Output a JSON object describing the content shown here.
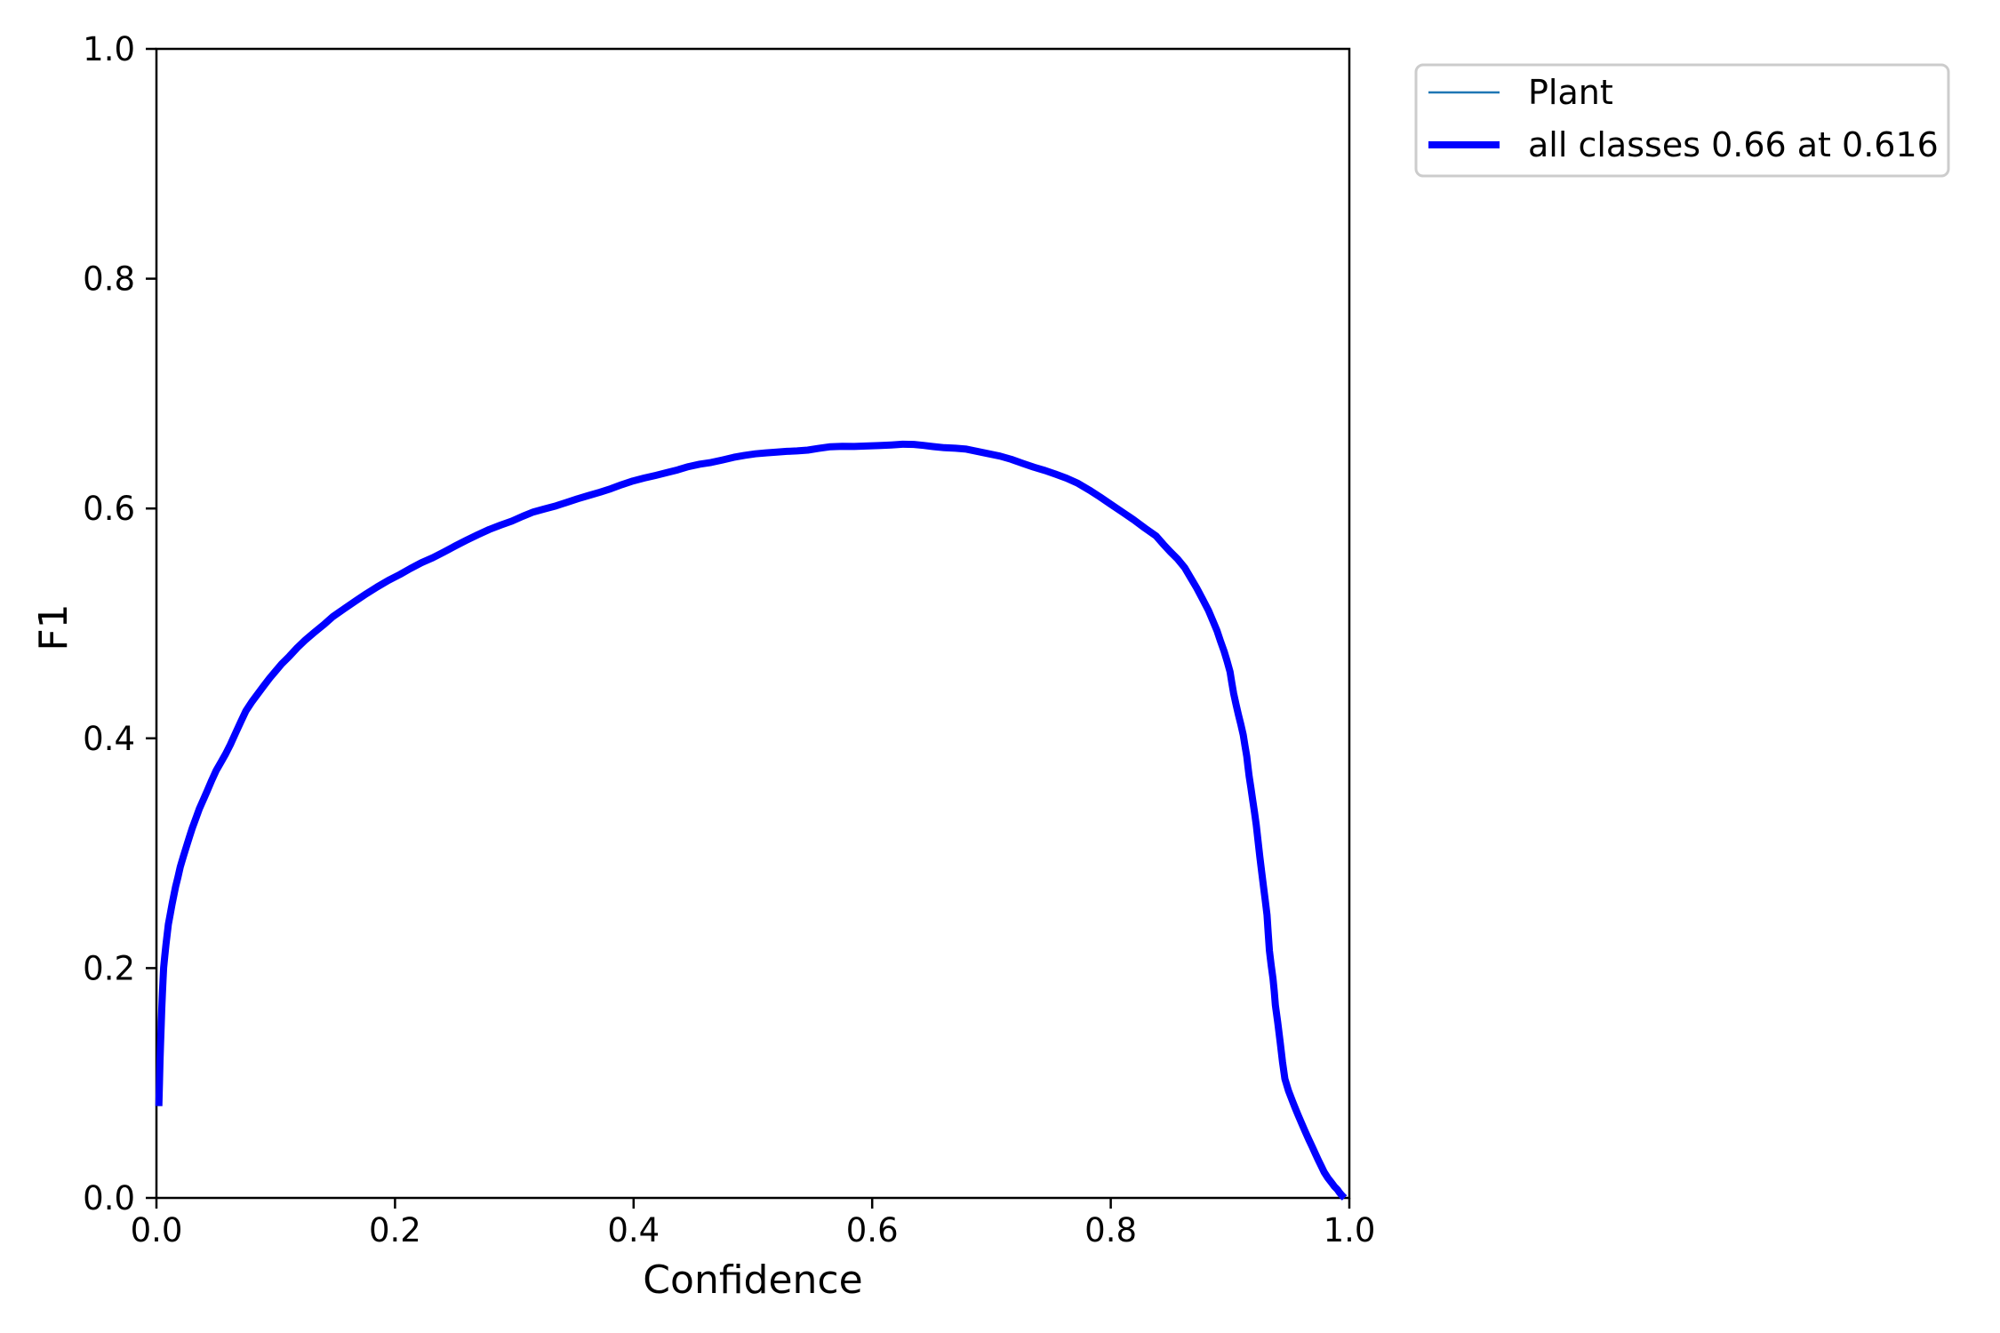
{
  "chart_data": {
    "type": "line",
    "title": "",
    "xlabel": "Confidence",
    "ylabel": "F1",
    "xlim": [
      0.0,
      1.0
    ],
    "ylim": [
      0.0,
      1.0
    ],
    "xticks": [
      "0.0",
      "0.2",
      "0.4",
      "0.6",
      "0.8",
      "1.0"
    ],
    "yticks": [
      "0.0",
      "0.2",
      "0.4",
      "0.6",
      "0.8",
      "1.0"
    ],
    "grid": false,
    "legend": {
      "position": "upper right, outside axes",
      "entries": [
        {
          "label": "Plant",
          "color": "#1f77b4",
          "linewidth": 2.5
        },
        {
          "label": "all classes 0.66 at 0.616",
          "color": "#0000ff",
          "linewidth": 8
        }
      ]
    },
    "peak": {
      "f1": 0.66,
      "confidence": 0.616
    },
    "points": [
      [
        0.002,
        0.08
      ],
      [
        0.003,
        0.12
      ],
      [
        0.004,
        0.152
      ],
      [
        0.005,
        0.178
      ],
      [
        0.006,
        0.2
      ],
      [
        0.008,
        0.222
      ],
      [
        0.01,
        0.238
      ],
      [
        0.013,
        0.256
      ],
      [
        0.016,
        0.271
      ],
      [
        0.02,
        0.288
      ],
      [
        0.025,
        0.306
      ],
      [
        0.03,
        0.322
      ],
      [
        0.036,
        0.338
      ],
      [
        0.043,
        0.355
      ],
      [
        0.05,
        0.371
      ],
      [
        0.058,
        0.387
      ],
      [
        0.066,
        0.403
      ],
      [
        0.075,
        0.424
      ],
      [
        0.085,
        0.44
      ],
      [
        0.095,
        0.453
      ],
      [
        0.105,
        0.465
      ],
      [
        0.118,
        0.479
      ],
      [
        0.132,
        0.492
      ],
      [
        0.148,
        0.506
      ],
      [
        0.167,
        0.519
      ],
      [
        0.185,
        0.531
      ],
      [
        0.204,
        0.543
      ],
      [
        0.222,
        0.553
      ],
      [
        0.241,
        0.562
      ],
      [
        0.26,
        0.572
      ],
      [
        0.279,
        0.581
      ],
      [
        0.298,
        0.589
      ],
      [
        0.316,
        0.596
      ],
      [
        0.335,
        0.602
      ],
      [
        0.353,
        0.608
      ],
      [
        0.372,
        0.614
      ],
      [
        0.39,
        0.62
      ],
      [
        0.409,
        0.626
      ],
      [
        0.428,
        0.631
      ],
      [
        0.446,
        0.636
      ],
      [
        0.465,
        0.64
      ],
      [
        0.484,
        0.644
      ],
      [
        0.502,
        0.647
      ],
      [
        0.52,
        0.649
      ],
      [
        0.537,
        0.65
      ],
      [
        0.555,
        0.653
      ],
      [
        0.575,
        0.654
      ],
      [
        0.595,
        0.655
      ],
      [
        0.616,
        0.656
      ],
      [
        0.635,
        0.655
      ],
      [
        0.651,
        0.654
      ],
      [
        0.67,
        0.652
      ],
      [
        0.688,
        0.65
      ],
      [
        0.707,
        0.646
      ],
      [
        0.726,
        0.64
      ],
      [
        0.745,
        0.633
      ],
      [
        0.763,
        0.626
      ],
      [
        0.782,
        0.616
      ],
      [
        0.8,
        0.604
      ],
      [
        0.819,
        0.591
      ],
      [
        0.838,
        0.576
      ],
      [
        0.85,
        0.563
      ],
      [
        0.862,
        0.548
      ],
      [
        0.872,
        0.531
      ],
      [
        0.882,
        0.511
      ],
      [
        0.889,
        0.494
      ],
      [
        0.895,
        0.476
      ],
      [
        0.9,
        0.458
      ],
      [
        0.903,
        0.439
      ],
      [
        0.907,
        0.421
      ],
      [
        0.911,
        0.403
      ],
      [
        0.914,
        0.385
      ],
      [
        0.916,
        0.367
      ],
      [
        0.919,
        0.347
      ],
      [
        0.922,
        0.326
      ],
      [
        0.925,
        0.296
      ],
      [
        0.928,
        0.27
      ],
      [
        0.931,
        0.248
      ],
      [
        0.933,
        0.215
      ],
      [
        0.936,
        0.19
      ],
      [
        0.938,
        0.17
      ],
      [
        0.942,
        0.135
      ],
      [
        0.946,
        0.101
      ],
      [
        0.952,
        0.085
      ],
      [
        0.957,
        0.073
      ],
      [
        0.963,
        0.057
      ],
      [
        0.969,
        0.045
      ],
      [
        0.974,
        0.033
      ],
      [
        0.979,
        0.022
      ],
      [
        0.985,
        0.013
      ],
      [
        0.99,
        0.007
      ],
      [
        0.993,
        0.003
      ],
      [
        0.996,
        0.0
      ]
    ],
    "series": [
      {
        "name": "Plant",
        "color": "#1f77b4",
        "linewidth": 2.5,
        "points_ref": "points"
      },
      {
        "name": "all classes 0.66 at 0.616",
        "color": "#0000ff",
        "linewidth": 8,
        "points_ref": "points"
      }
    ]
  },
  "axes": {
    "spine_color": "#000000",
    "tick_color": "#000000",
    "legend_border_color": "#cccccc",
    "legend_background": "#ffffff"
  }
}
